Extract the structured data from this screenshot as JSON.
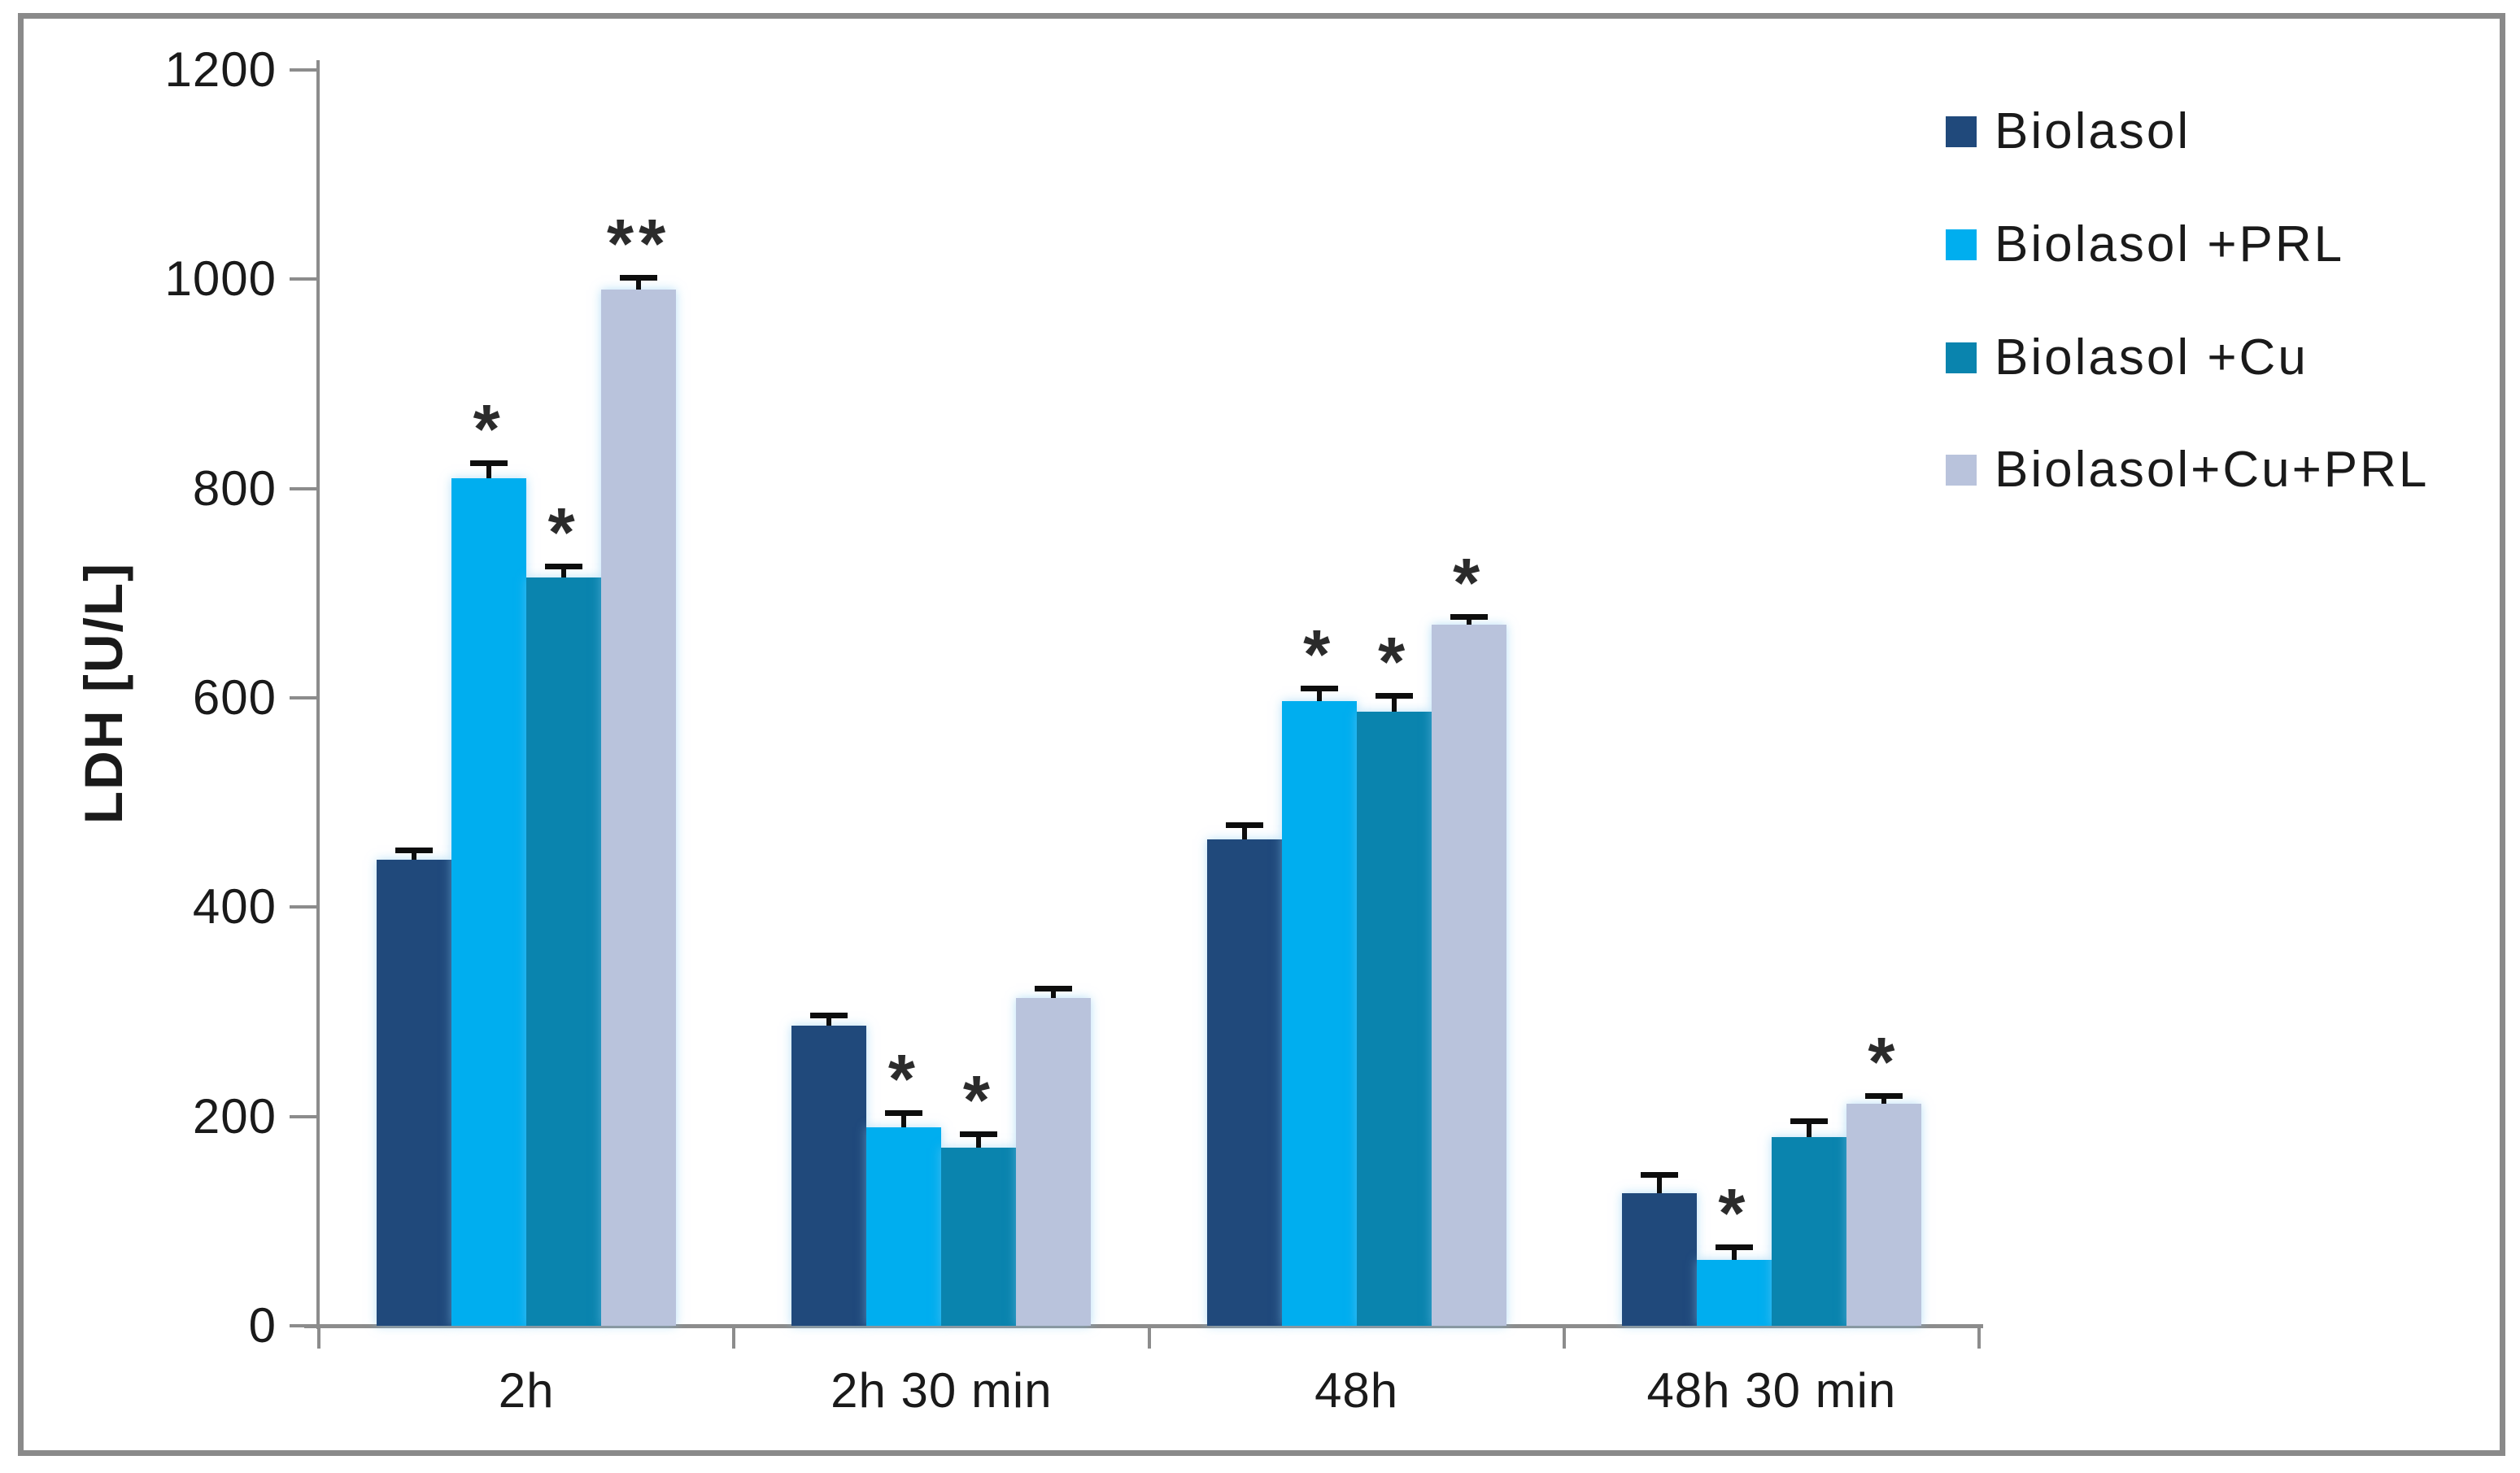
{
  "chart_data": {
    "type": "bar",
    "title": "",
    "xlabel": "",
    "ylabel": "LDH [U/L]",
    "ylim": [
      0,
      1200
    ],
    "yticks": [
      0,
      200,
      400,
      600,
      800,
      1000,
      1200
    ],
    "grid": false,
    "legend_position": "top-right",
    "categories": [
      "2h",
      "2h 30 min",
      "48h",
      "48h 30 min"
    ],
    "series": [
      {
        "name": "Biolasol",
        "color": "#20497B",
        "values": [
          445,
          287,
          465,
          127
        ],
        "errors": [
          12,
          12,
          16,
          20
        ],
        "significance": [
          "",
          "",
          "",
          ""
        ]
      },
      {
        "name": "Biolasol +PRL",
        "color": "#00AEEF",
        "values": [
          810,
          190,
          597,
          63
        ],
        "errors": [
          17,
          16,
          15,
          15
        ],
        "significance": [
          "*",
          "*",
          "*",
          "*"
        ]
      },
      {
        "name": "Biolasol +Cu",
        "color": "#0A84AE",
        "values": [
          715,
          170,
          587,
          180
        ],
        "errors": [
          13,
          16,
          18,
          18
        ],
        "significance": [
          "*",
          "*",
          "*",
          ""
        ]
      },
      {
        "name": "Biolasol+Cu+PRL",
        "color": "#B9C3DC",
        "values": [
          990,
          313,
          670,
          212
        ],
        "errors": [
          14,
          12,
          10,
          10
        ],
        "significance": [
          "**",
          "",
          "*",
          "*"
        ]
      }
    ],
    "error_bar_color": "#0D0D0D",
    "axis_color": "#8C8C8C",
    "text_color": "#1A1A1A"
  }
}
